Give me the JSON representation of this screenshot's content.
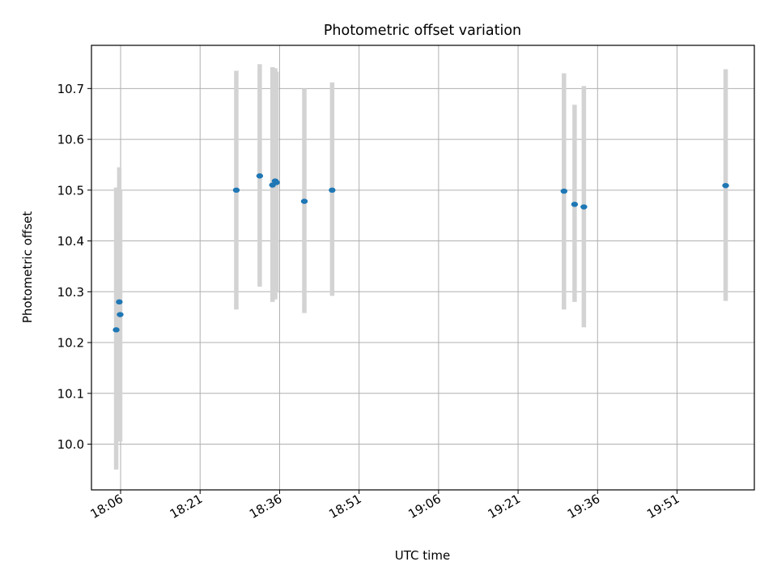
{
  "chart_data": {
    "type": "scatter",
    "title": "Photometric offset variation",
    "xlabel": "UTC time",
    "ylabel": "Photometric offset",
    "x_unit": "time of day",
    "xlim": [
      "18:00:30",
      "20:05:35"
    ],
    "ylim": [
      9.91,
      10.785
    ],
    "x_ticks": [
      "18:06",
      "18:21",
      "18:36",
      "18:51",
      "19:06",
      "19:21",
      "19:36",
      "19:51"
    ],
    "y_ticks": [
      10.0,
      10.1,
      10.2,
      10.3,
      10.4,
      10.5,
      10.6,
      10.7
    ],
    "grid": true,
    "errorbar_color": "#d3d3d3",
    "marker_color": "#1f77b4",
    "series": [
      {
        "points": [
          {
            "x": "18:05:10",
            "y": 10.225,
            "err_low": 9.95,
            "err_high": 10.505
          },
          {
            "x": "18:05:45",
            "y": 10.28,
            "err_low": 10.01,
            "err_high": 10.545
          },
          {
            "x": "18:05:55",
            "y": 10.255,
            "err_low": 10.005,
            "err_high": 10.5
          },
          {
            "x": "18:27:50",
            "y": 10.5,
            "err_low": 10.265,
            "err_high": 10.735
          },
          {
            "x": "18:32:15",
            "y": 10.528,
            "err_low": 10.31,
            "err_high": 10.748
          },
          {
            "x": "18:34:40",
            "y": 10.51,
            "err_low": 10.28,
            "err_high": 10.742
          },
          {
            "x": "18:35:10",
            "y": 10.518,
            "err_low": 10.285,
            "err_high": 10.74
          },
          {
            "x": "18:35:25",
            "y": 10.515,
            "err_low": 10.3,
            "err_high": 10.733
          },
          {
            "x": "18:40:40",
            "y": 10.478,
            "err_low": 10.258,
            "err_high": 10.7
          },
          {
            "x": "18:45:55",
            "y": 10.5,
            "err_low": 10.292,
            "err_high": 10.712
          },
          {
            "x": "19:29:40",
            "y": 10.498,
            "err_low": 10.265,
            "err_high": 10.73
          },
          {
            "x": "19:31:40",
            "y": 10.472,
            "err_low": 10.28,
            "err_high": 10.668
          },
          {
            "x": "19:33:25",
            "y": 10.467,
            "err_low": 10.23,
            "err_high": 10.705
          },
          {
            "x": "20:00:10",
            "y": 10.509,
            "err_low": 10.282,
            "err_high": 10.738
          }
        ]
      }
    ]
  }
}
